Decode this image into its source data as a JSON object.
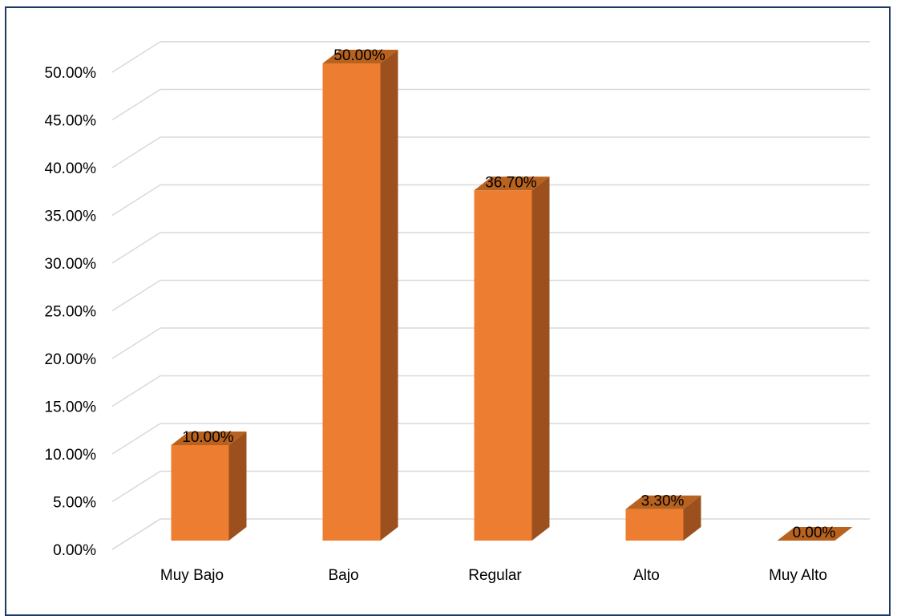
{
  "chart_data": {
    "type": "bar",
    "categories": [
      "Muy Bajo",
      "Bajo",
      "Regular",
      "Alto",
      "Muy Alto"
    ],
    "values": [
      10.0,
      50.0,
      36.7,
      3.3,
      0.0
    ],
    "data_labels": [
      "10.00%",
      "50.00%",
      "36.70%",
      "3.30%",
      "0.00%"
    ],
    "y_ticks": [
      "0.00%",
      "5.00%",
      "10.00%",
      "15.00%",
      "20.00%",
      "25.00%",
      "30.00%",
      "35.00%",
      "40.00%",
      "45.00%",
      "50.00%"
    ],
    "ylim": [
      0,
      50
    ],
    "y_step": 5,
    "style": "3d-column",
    "grid": true,
    "colors": {
      "bar_front": "#ED7D31",
      "bar_side": "#9C501E",
      "bar_top": "#B8621F",
      "grid": "#D9D9D9",
      "frame": "#1F3864"
    }
  }
}
